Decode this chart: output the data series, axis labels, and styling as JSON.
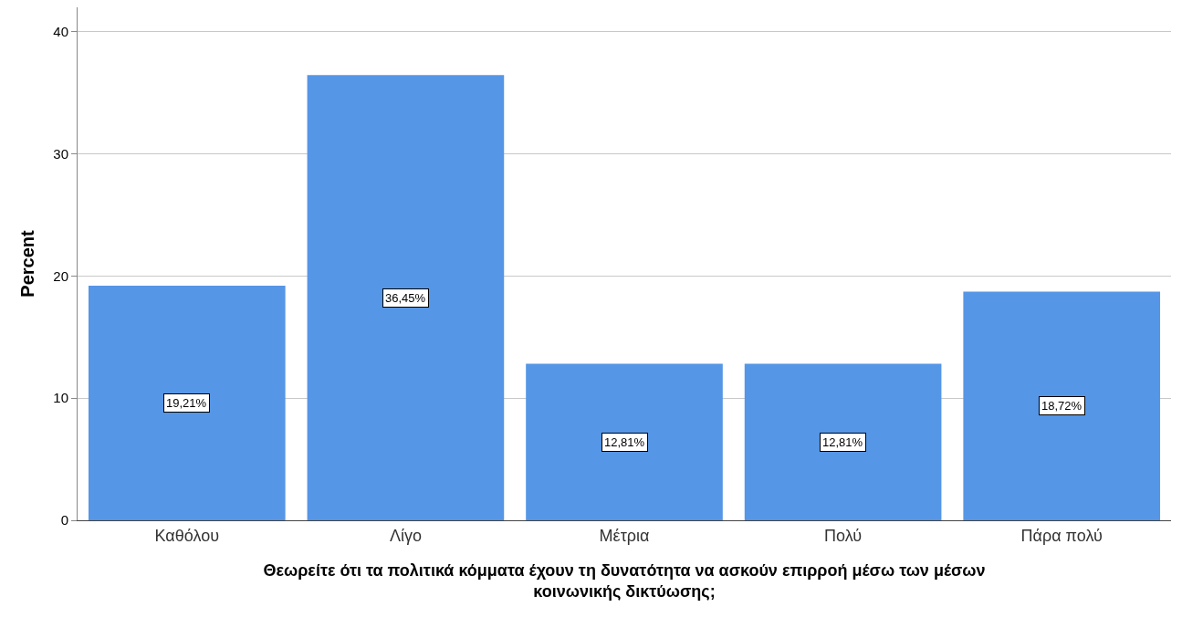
{
  "chart_data": {
    "type": "bar",
    "categories": [
      "Καθόλου",
      "Λίγο",
      "Μέτρια",
      "Πολύ",
      "Πάρα πολύ"
    ],
    "values": [
      19.21,
      36.45,
      12.81,
      12.81,
      18.72
    ],
    "value_labels": [
      "19,21%",
      "36,45%",
      "12,81%",
      "12,81%",
      "18,72%"
    ],
    "color": "#5596e6",
    "xlabel": "Θεωρείτε ότι τα πολιτικά κόμματα έχουν τη δυνατότητα να ασκούν επιρροή μέσω των μέσων\nκοινωνικής δικτύωσης;",
    "ylabel": "Percent",
    "ylim": [
      0,
      42
    ],
    "yticks": [
      0,
      10,
      20,
      30,
      40
    ],
    "grid": "y"
  }
}
